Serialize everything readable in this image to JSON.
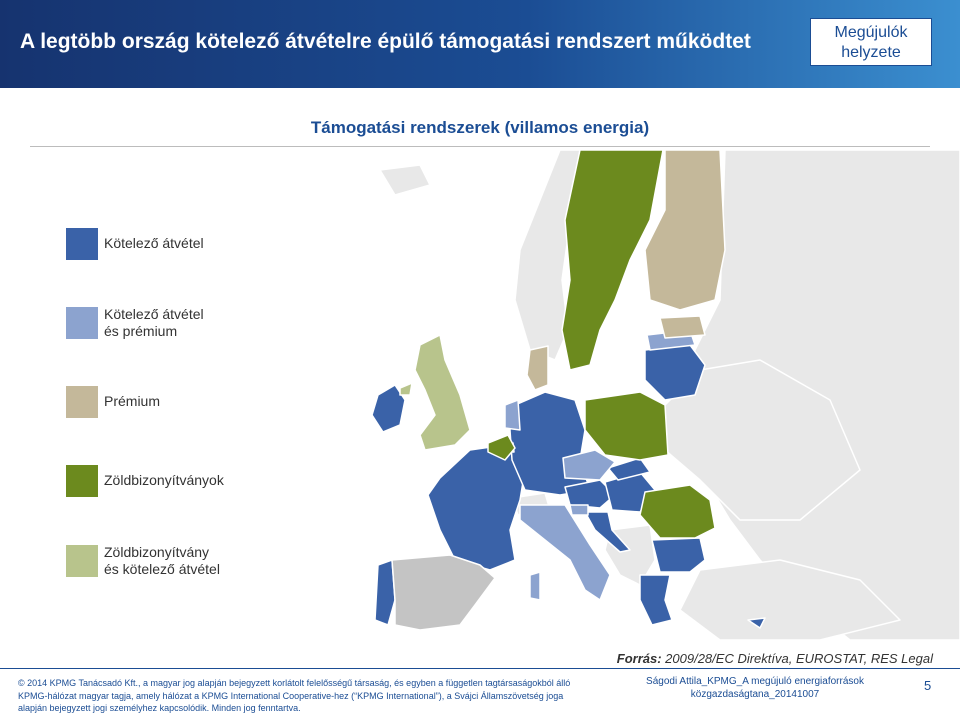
{
  "header": {
    "title": "A legtöbb ország kötelező átvételre épülő támogatási rendszert működtet",
    "section_line1": "Megújulók",
    "section_line2": "helyzete"
  },
  "subtitle": "Támogatási rendszerek (villamos energia)",
  "legend": {
    "items": [
      {
        "line1": "Kötelező átvétel",
        "line2": "",
        "color": "#3a62a8"
      },
      {
        "line1": "Kötelező átvétel",
        "line2": "és prémium",
        "color": "#8ca3cf"
      },
      {
        "line1": "Prémium",
        "line2": "",
        "color": "#c4b89a"
      },
      {
        "line1": "Zöldbizonyítványok",
        "line2": "",
        "color": "#6c8a1e"
      },
      {
        "line1": "Zöldbizonyítvány",
        "line2": "és kötelező átvétel",
        "color": "#b8c48c"
      }
    ]
  },
  "map_colors": {
    "non_eu": "#e8e8e8",
    "no_data": "#c4c4c4",
    "sea": "#ffffff"
  },
  "source": {
    "label": "Forrás:",
    "text": "2009/28/EC Direktíva, EUROSTAT, RES Legal"
  },
  "footer": {
    "copy_line1": "© 2014 KPMG Tanácsadó Kft., a magyar jog alapján bejegyzett korlátolt felelősségű társaság, és egyben a független tagtársaságokból álló",
    "copy_line2": "KPMG-hálózat magyar tagja, amely hálózat a KPMG International Cooperative-hez (“KPMG International”), a Svájci Államszövetség joga",
    "copy_line3": "alapján bejegyzett jogi személyhez kapcsolódik. Minden jog fenntartva.",
    "author_line1": "Ságodi Attila_KPMG_A megújuló energiaforrások",
    "author_line2": "közgazdaságtana_20141007",
    "page_number": "5"
  }
}
